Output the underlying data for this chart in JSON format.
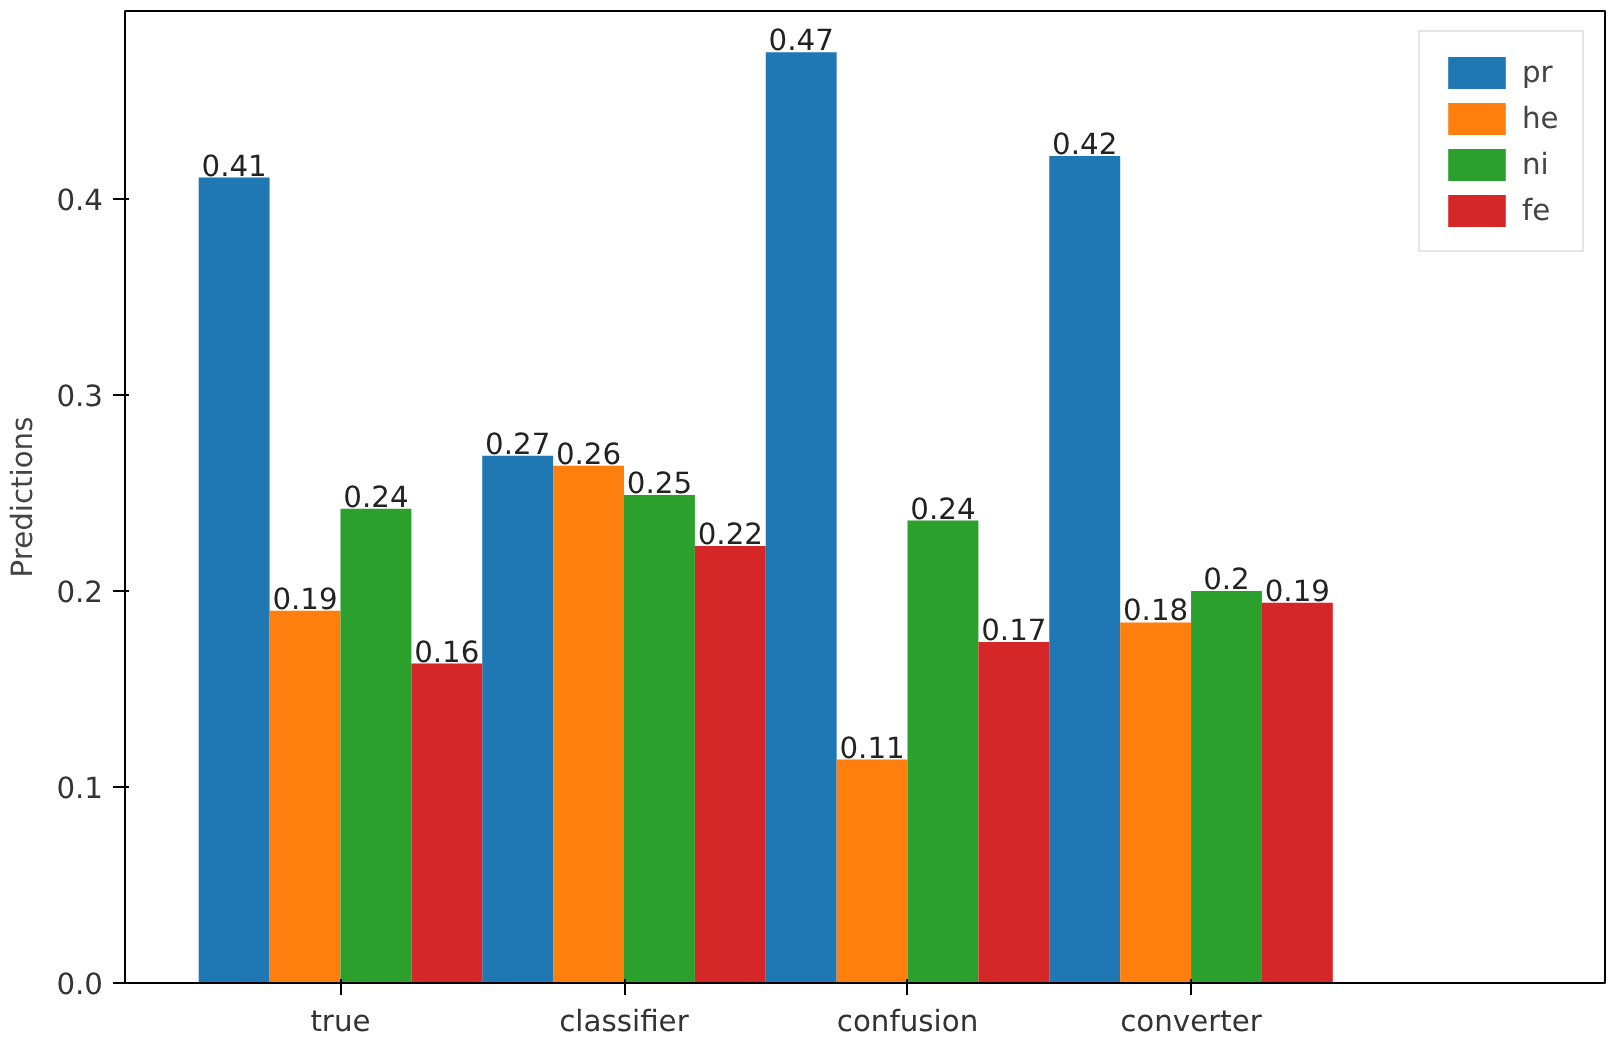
{
  "chart_data": {
    "type": "bar",
    "ylabel": "Predictions",
    "categories": [
      "true",
      "classifier",
      "confusion",
      "converter"
    ],
    "series": [
      {
        "name": "pr",
        "color": "#1f77b4",
        "values": [
          0.411,
          0.269,
          0.475,
          0.422
        ],
        "value_labels": [
          "0.41",
          "0.27",
          "0.47",
          "0.42"
        ]
      },
      {
        "name": "he",
        "color": "#ff7f0e",
        "values": [
          0.19,
          0.264,
          0.114,
          0.184
        ],
        "value_labels": [
          "0.19",
          "0.26",
          "0.11",
          "0.18"
        ]
      },
      {
        "name": "ni",
        "color": "#2ca02c",
        "values": [
          0.242,
          0.249,
          0.236,
          0.2
        ],
        "value_labels": [
          "0.24",
          "0.25",
          "0.24",
          "0.2"
        ]
      },
      {
        "name": "fe",
        "color": "#d62728",
        "values": [
          0.163,
          0.223,
          0.174,
          0.194
        ],
        "value_labels": [
          "0.16",
          "0.22",
          "0.17",
          "0.19"
        ]
      }
    ],
    "ylim": [
      0,
      0.496
    ],
    "yticks": [
      {
        "value": 0,
        "label": "0.0"
      },
      0.1,
      0.2,
      0.3,
      0.4
    ],
    "legend": "top right",
    "grid": false
  }
}
